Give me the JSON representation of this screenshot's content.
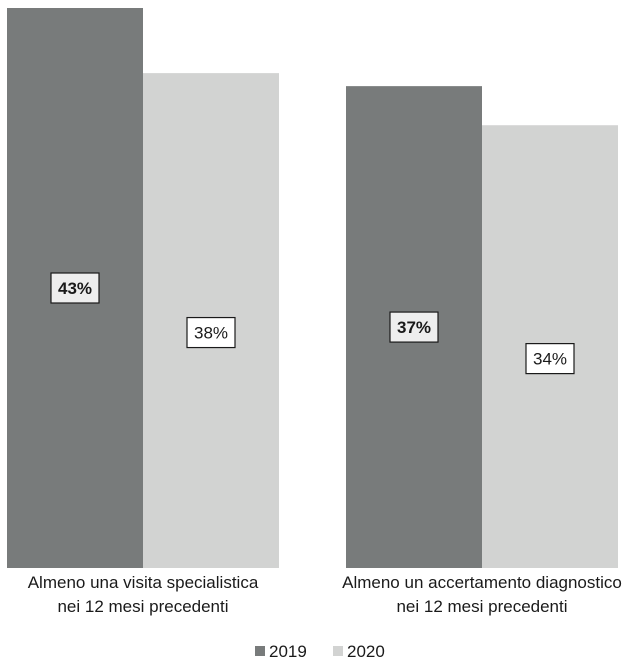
{
  "chart_data": {
    "type": "bar",
    "title": "",
    "xlabel": "",
    "ylabel": "",
    "ylim": [
      0,
      43
    ],
    "grid": false,
    "legend_position": "bottom",
    "categories": [
      [
        "Almeno una visita specialistica",
        "nei 12 mesi precedenti"
      ],
      [
        "Almeno un accertamento diagnostico",
        "nei 12 mesi precedenti"
      ]
    ],
    "series": [
      {
        "name": "2019",
        "values": [
          43,
          37
        ],
        "labels": [
          "43%",
          "37%"
        ],
        "color": "#787b7b",
        "label_bold": true,
        "label_bg": "#eeeeee"
      },
      {
        "name": "2020",
        "values": [
          38,
          34
        ],
        "labels": [
          "38%",
          "34%"
        ],
        "color": "#d2d3d2",
        "label_bold": false,
        "label_bg": "#ffffff"
      }
    ]
  }
}
